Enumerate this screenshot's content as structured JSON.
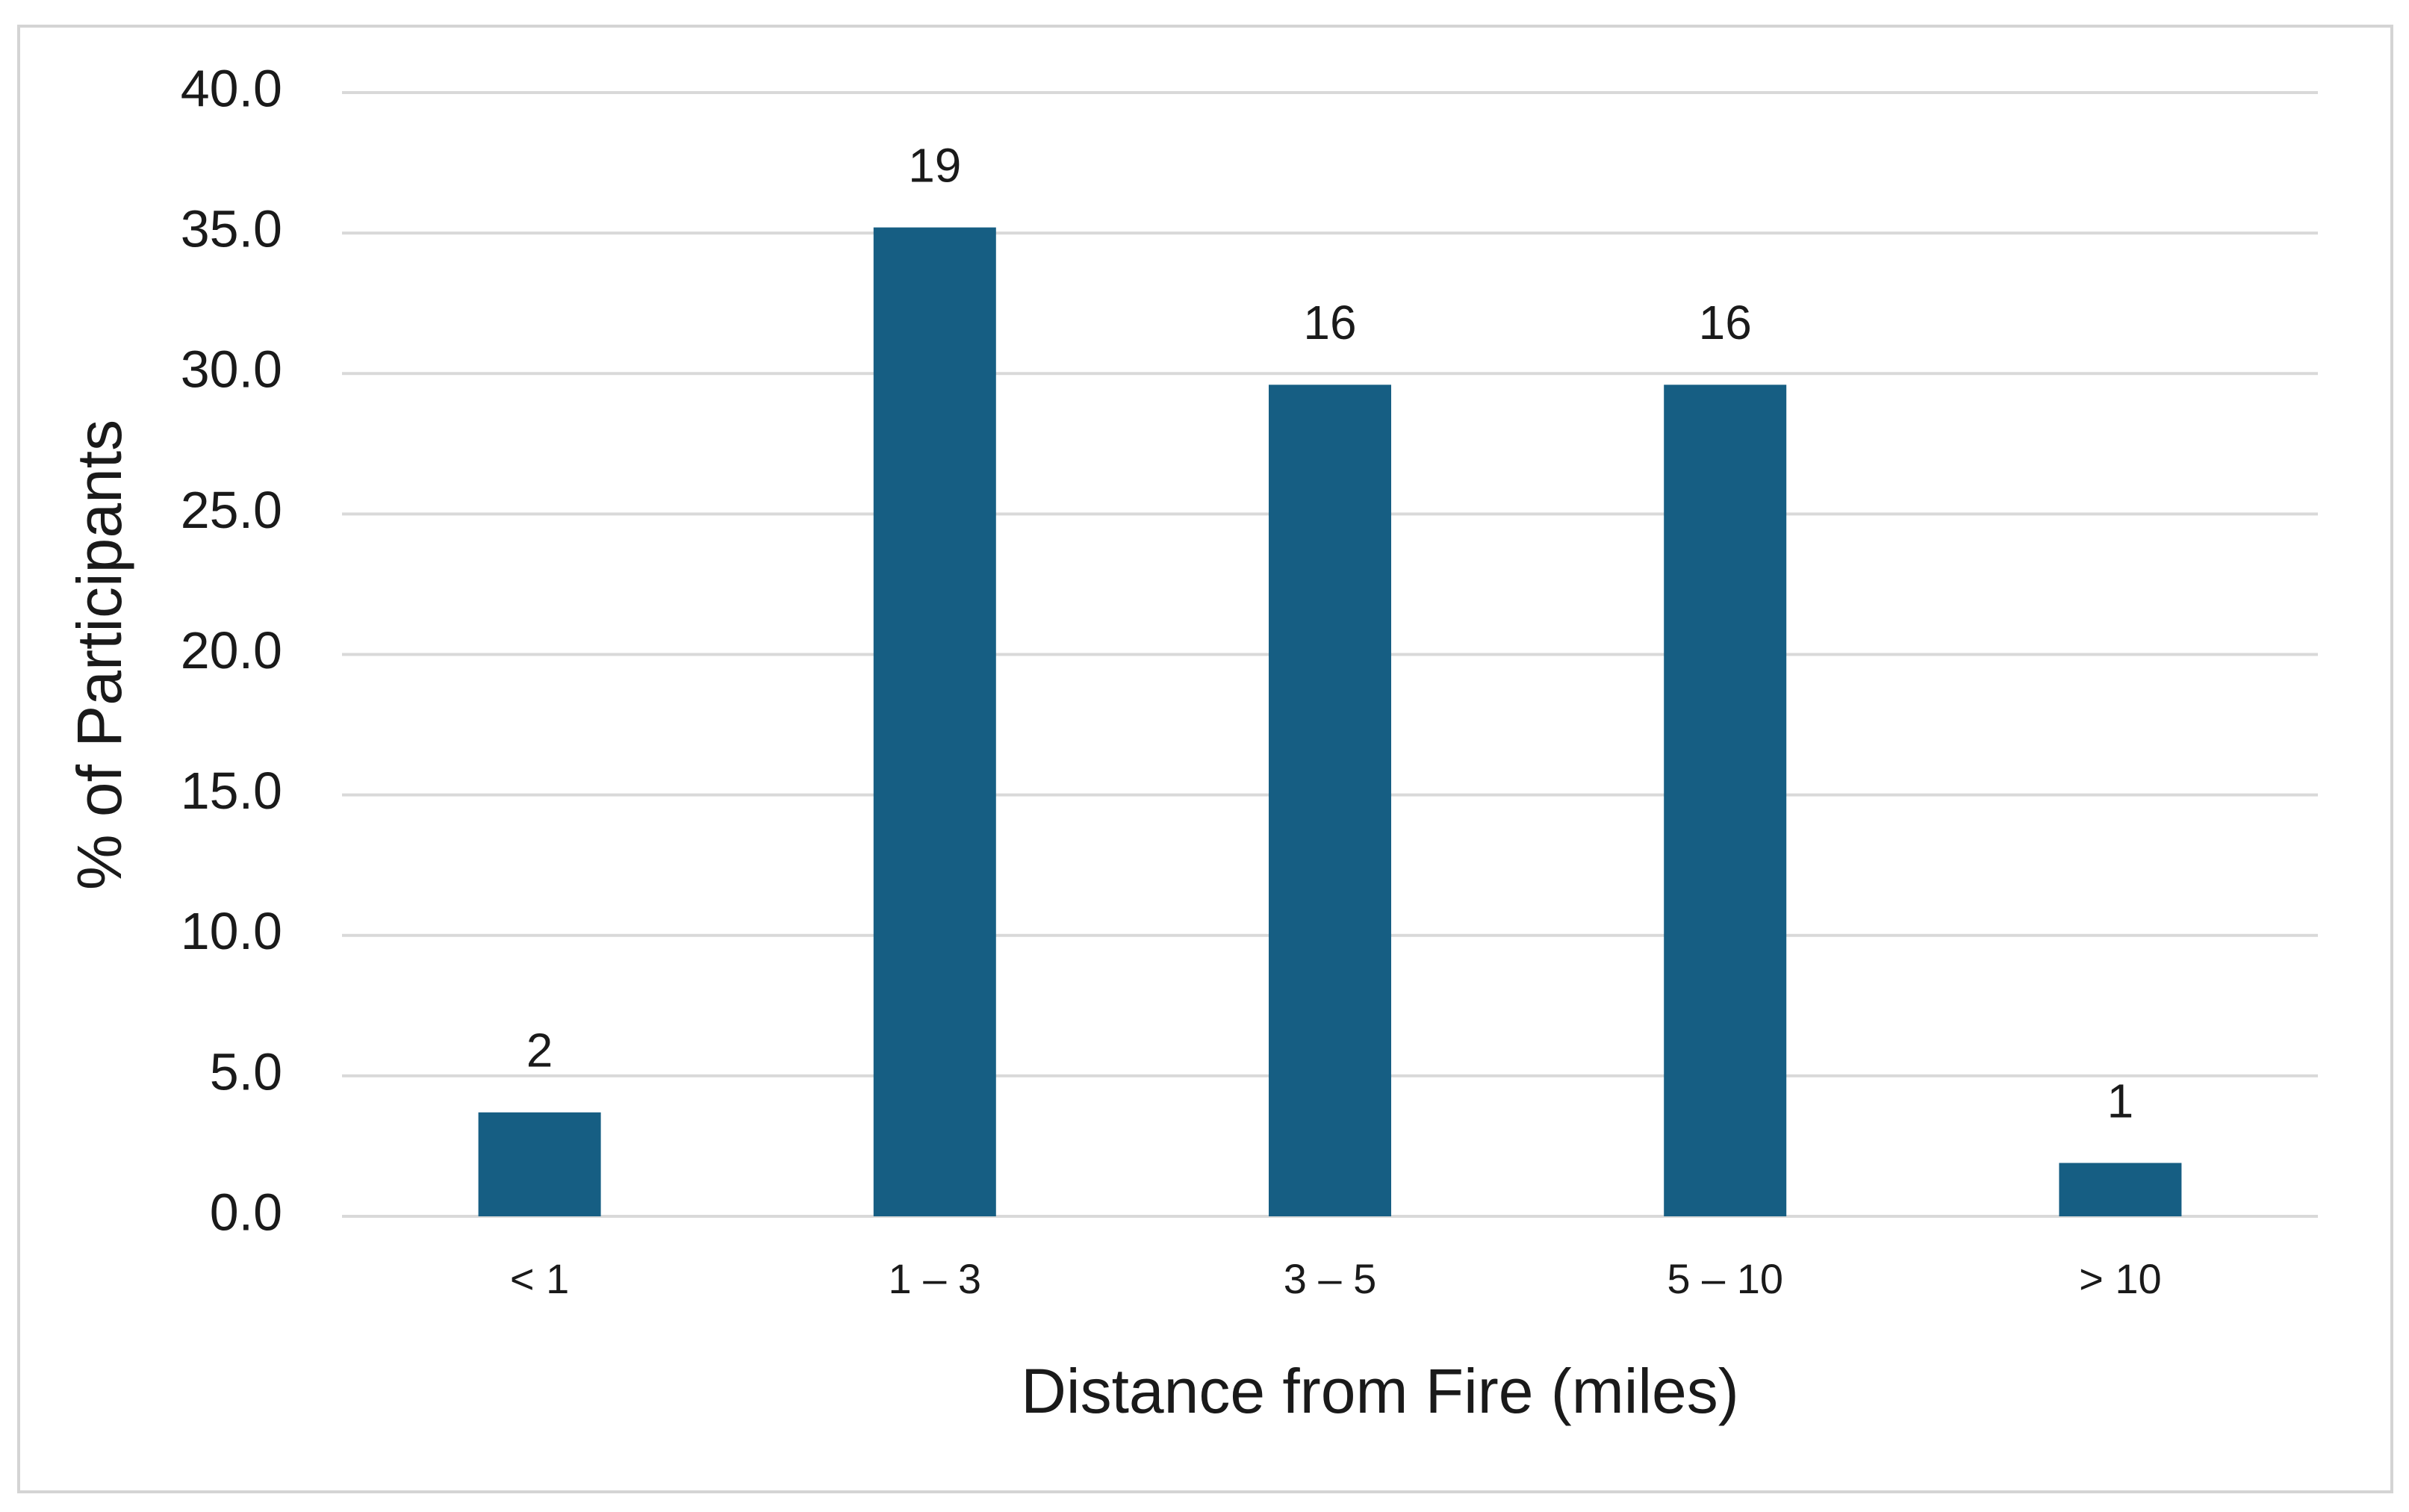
{
  "chart_data": {
    "type": "bar",
    "x_label": "Distance from Fire (miles)",
    "y_label": "% of Participants",
    "categories": [
      "< 1",
      "1 – 3",
      "3 – 5",
      "5 – 10",
      "> 10"
    ],
    "values": [
      3.7,
      35.2,
      29.6,
      29.6,
      1.9
    ],
    "counts": [
      2,
      19,
      16,
      16,
      1
    ],
    "color": "#165e83",
    "ylim": [
      0,
      40
    ],
    "yticks": [
      {
        "value": 0,
        "label": "0.0"
      },
      {
        "value": 5,
        "label": "5.0"
      },
      {
        "value": 10,
        "label": "10.0"
      },
      {
        "value": 15,
        "label": "15.0"
      },
      {
        "value": 20,
        "label": "20.0"
      },
      {
        "value": 25,
        "label": "25.0"
      },
      {
        "value": 30,
        "label": "30.0"
      },
      {
        "value": 35,
        "label": "35.0"
      },
      {
        "value": 40,
        "label": "40.0"
      }
    ],
    "grid": true
  }
}
